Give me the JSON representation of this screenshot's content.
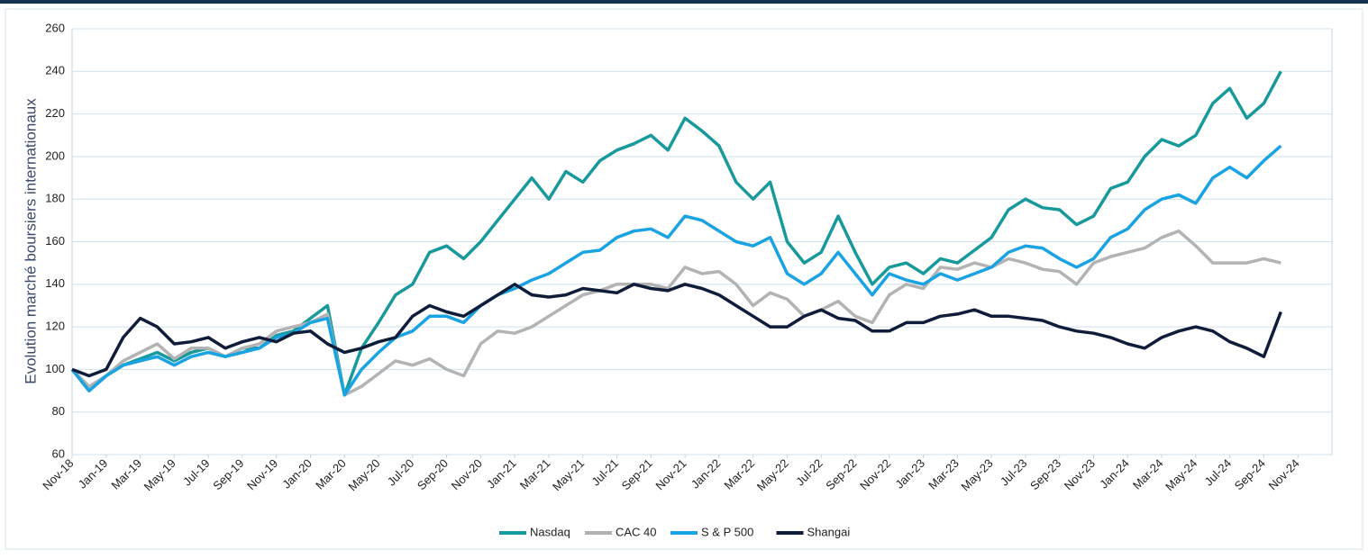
{
  "chart_data": {
    "type": "line",
    "y_label": "Evolution marché boursiers internationaux",
    "categories": [
      "Nov-18",
      null,
      "Jan-19",
      null,
      "Mar-19",
      null,
      "May-19",
      null,
      "Jul-19",
      null,
      "Sep-19",
      null,
      "Nov-19",
      null,
      "Jan-20",
      null,
      "Mar-20",
      null,
      "May-20",
      null,
      "Jul-20",
      null,
      "Sep-20",
      null,
      "Nov-20",
      null,
      "Jan-21",
      null,
      "Mar-21",
      null,
      "May-21",
      null,
      "Jul-21",
      null,
      "Sep-21",
      null,
      "Nov-21",
      null,
      "Jan-22",
      null,
      "Mar-22",
      null,
      "May-22",
      null,
      "Jul-22",
      null,
      "Sep-22",
      null,
      "Nov-22",
      null,
      "Jan-23",
      null,
      "Mar-23",
      null,
      "May-23",
      null,
      "Jul-23",
      null,
      "Sep-23",
      null,
      "Nov-23",
      null,
      "Jan-24",
      null,
      "Mar-24",
      null,
      "May-24",
      null,
      "Jul-24",
      null,
      "Sep-24",
      null,
      "Nov-24"
    ],
    "series": [
      {
        "name": "Nasdaq",
        "color": "#18999b",
        "values": [
          100,
          90,
          97,
          102,
          105,
          108,
          104,
          108,
          110,
          106,
          110,
          110,
          116,
          118,
          124,
          130,
          88,
          110,
          122,
          135,
          140,
          155,
          158,
          152,
          160,
          170,
          180,
          190,
          180,
          193,
          188,
          198,
          203,
          206,
          210,
          203,
          218,
          212,
          205,
          188,
          180,
          188,
          160,
          150,
          155,
          172,
          155,
          140,
          148,
          150,
          145,
          152,
          150,
          156,
          162,
          175,
          180,
          176,
          175,
          168,
          172,
          185,
          188,
          200,
          208,
          205,
          210,
          225,
          232,
          218,
          225,
          240,
          null
        ]
      },
      {
        "name": "CAC 40",
        "color": "#b3b3b3",
        "values": [
          100,
          92,
          97,
          104,
          108,
          112,
          105,
          110,
          110,
          106,
          110,
          112,
          118,
          120,
          122,
          126,
          88,
          92,
          98,
          104,
          102,
          105,
          100,
          97,
          112,
          118,
          117,
          120,
          125,
          130,
          135,
          137,
          140,
          140,
          140,
          138,
          148,
          145,
          146,
          140,
          130,
          136,
          133,
          125,
          128,
          132,
          125,
          122,
          135,
          140,
          138,
          148,
          147,
          150,
          148,
          152,
          150,
          147,
          146,
          140,
          150,
          153,
          155,
          157,
          162,
          165,
          158,
          150,
          150,
          150,
          152,
          150,
          null
        ]
      },
      {
        "name": "S & P 500",
        "color": "#1aa3e3",
        "values": [
          100,
          90,
          97,
          102,
          104,
          106,
          102,
          106,
          108,
          106,
          108,
          110,
          115,
          117,
          122,
          124,
          88,
          100,
          108,
          115,
          118,
          125,
          125,
          122,
          130,
          135,
          138,
          142,
          145,
          150,
          155,
          156,
          162,
          165,
          166,
          162,
          172,
          170,
          165,
          160,
          158,
          162,
          145,
          140,
          145,
          155,
          145,
          135,
          145,
          142,
          140,
          145,
          142,
          145,
          148,
          155,
          158,
          157,
          152,
          148,
          152,
          162,
          166,
          175,
          180,
          182,
          178,
          190,
          195,
          190,
          198,
          205,
          null
        ]
      },
      {
        "name": "Shangai",
        "color": "#0f1d3a",
        "values": [
          100,
          97,
          100,
          115,
          124,
          120,
          112,
          113,
          115,
          110,
          113,
          115,
          113,
          117,
          118,
          112,
          108,
          110,
          113,
          115,
          125,
          130,
          127,
          125,
          130,
          135,
          140,
          135,
          134,
          135,
          138,
          137,
          136,
          140,
          138,
          137,
          140,
          138,
          135,
          130,
          125,
          120,
          120,
          125,
          128,
          124,
          123,
          118,
          118,
          122,
          122,
          125,
          126,
          128,
          125,
          125,
          124,
          123,
          120,
          118,
          117,
          115,
          112,
          110,
          115,
          118,
          120,
          118,
          113,
          110,
          106,
          127,
          null
        ]
      }
    ],
    "ylim": [
      60,
      260
    ],
    "yticks": [
      60,
      80,
      100,
      120,
      140,
      160,
      180,
      200,
      220,
      240,
      260
    ],
    "grid": true
  }
}
